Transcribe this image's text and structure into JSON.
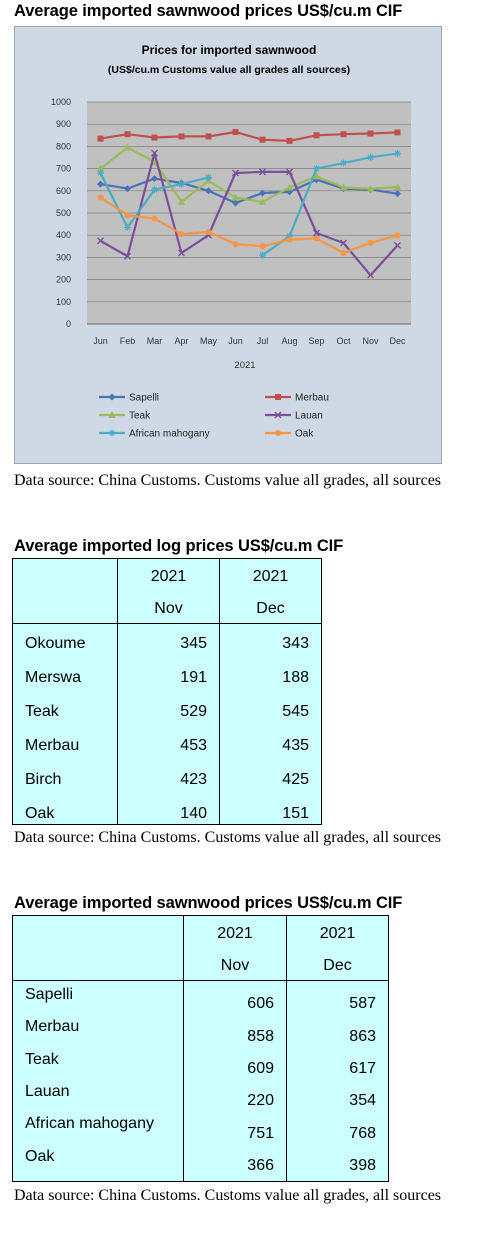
{
  "heading1": "Average imported sawnwood prices US$/cu.m CIF",
  "chart_data": {
    "type": "line",
    "title": "Prices for imported sawnwood",
    "subtitle": "(US$/cu.m Customs value all grades all sources)",
    "x": [
      "Jun",
      "Feb",
      "Mar",
      "Apr",
      "May",
      "Jun",
      "Jul",
      "Aug",
      "Sep",
      "Oct",
      "Nov",
      "Dec"
    ],
    "xlabel": "2021",
    "ylabel": "",
    "ylim": [
      0,
      1000
    ],
    "yticks": [
      "1000",
      "900",
      "800",
      "700",
      "600",
      "500",
      "400",
      "300",
      "200",
      "100",
      "0"
    ],
    "grid": true,
    "legend_position": "bottom",
    "series": [
      {
        "name": "Sapelli",
        "color": "#4a72b8",
        "marker": "diamond",
        "values": [
          630,
          610,
          655,
          635,
          600,
          545,
          590,
          595,
          650,
          610,
          606,
          587
        ]
      },
      {
        "name": "Merbau",
        "color": "#c0504d",
        "marker": "square",
        "values": [
          835,
          855,
          840,
          845,
          845,
          865,
          830,
          825,
          850,
          855,
          858,
          863
        ]
      },
      {
        "name": "Teak",
        "color": "#9bbb59",
        "marker": "triangle",
        "values": [
          700,
          795,
          730,
          550,
          645,
          570,
          550,
          615,
          665,
          615,
          609,
          617
        ]
      },
      {
        "name": "Lauan",
        "color": "#7a4f9a",
        "marker": "x",
        "values": [
          375,
          305,
          770,
          320,
          400,
          680,
          685,
          685,
          410,
          365,
          220,
          354
        ]
      },
      {
        "name": "African mahogany",
        "color": "#4bacc6",
        "marker": "star",
        "values": [
          680,
          435,
          605,
          630,
          660,
          null,
          310,
          395,
          700,
          725,
          751,
          768
        ]
      },
      {
        "name": "Oak",
        "color": "#f79646",
        "marker": "circle",
        "values": [
          570,
          490,
          475,
          405,
          415,
          360,
          350,
          380,
          385,
          320,
          366,
          398
        ]
      }
    ]
  },
  "source1": "Data source: China Customs. Customs value all grades, all sources",
  "heading2": "Average imported log prices US$/cu.m CIF",
  "log_table": {
    "year_nov": "2021",
    "month_nov": "Nov",
    "year_dec": "2021",
    "month_dec": "Dec",
    "rows": [
      {
        "name": "Okoume",
        "nov": "345",
        "dec": "343"
      },
      {
        "name": "Merswa",
        "nov": "191",
        "dec": "188"
      },
      {
        "name": "Teak",
        "nov": "529",
        "dec": "545"
      },
      {
        "name": "Merbau",
        "nov": "453",
        "dec": "435"
      },
      {
        "name": "Birch",
        "nov": "423",
        "dec": "425"
      },
      {
        "name": "Oak",
        "nov": "140",
        "dec": "151"
      }
    ]
  },
  "source2": "Data source: China Customs. Customs value all grades, all sources",
  "heading3": "Average imported sawnwood prices US$/cu.m CIF",
  "sawn_table": {
    "year_nov": "2021",
    "month_nov": "Nov",
    "year_dec": "2021",
    "month_dec": "Dec",
    "rows": [
      {
        "name": "Sapelli",
        "nov": "606",
        "dec": "587"
      },
      {
        "name": "Merbau",
        "nov": "858",
        "dec": "863"
      },
      {
        "name": "Teak",
        "nov": "609",
        "dec": "617"
      },
      {
        "name": "Lauan",
        "nov": "220",
        "dec": "354"
      },
      {
        "name": "African mahogany",
        "nov": "751",
        "dec": "768"
      },
      {
        "name": "Oak",
        "nov": "366",
        "dec": "398"
      }
    ]
  },
  "source3": "Data source: China Customs. Customs value all grades, all sources"
}
